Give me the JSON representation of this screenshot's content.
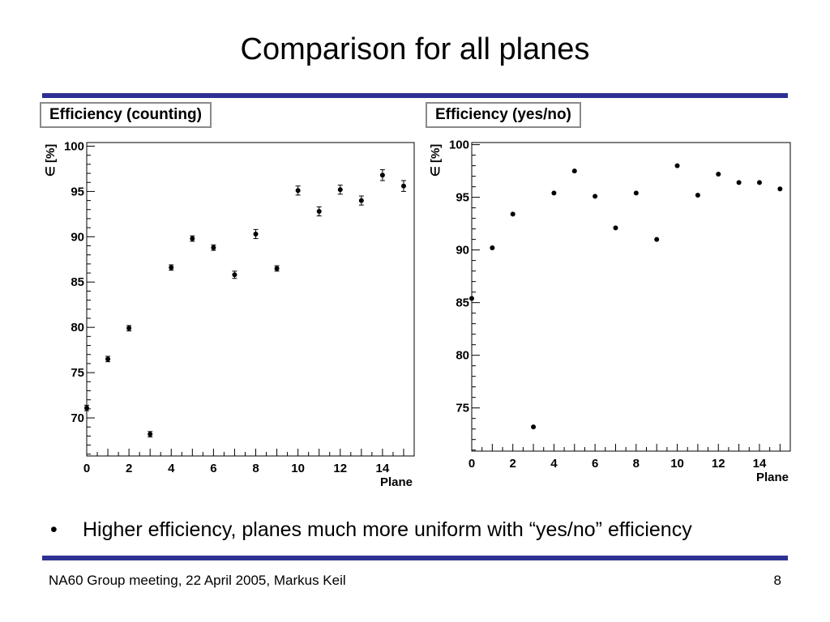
{
  "slide": {
    "title": "Comparison for all planes",
    "bullet_marker": "•",
    "bullet": "Higher efficiency, planes much more uniform with “yes/no” efficiency",
    "footer": "NA60 Group meeting, 22 April 2005, Markus Keil",
    "page_number": "8",
    "accent_color": "#2e3192"
  },
  "chart_data": [
    {
      "type": "scatter",
      "title": "Efficiency (counting)",
      "xlabel": "Plane",
      "ylabel": "∈ [%]",
      "xlim": [
        0,
        15.5
      ],
      "ylim": [
        65.8,
        100.4
      ],
      "xticks": [
        0,
        2,
        4,
        6,
        8,
        10,
        12,
        14
      ],
      "yticks": [
        70,
        75,
        80,
        85,
        90,
        95,
        100
      ],
      "grid": false,
      "error_bars": true,
      "series": [
        {
          "x": [
            0,
            1,
            2,
            3,
            4,
            5,
            6,
            7,
            8,
            9,
            10,
            11,
            12,
            13,
            14,
            15
          ],
          "y": [
            71.1,
            76.5,
            79.9,
            68.2,
            86.6,
            89.8,
            88.8,
            85.8,
            90.3,
            86.5,
            95.1,
            92.8,
            95.2,
            94.0,
            96.8,
            95.6
          ],
          "yerr": [
            0.3,
            0.3,
            0.3,
            0.3,
            0.3,
            0.3,
            0.3,
            0.4,
            0.5,
            0.3,
            0.5,
            0.5,
            0.5,
            0.5,
            0.6,
            0.6
          ]
        }
      ]
    },
    {
      "type": "scatter",
      "title": "Efficiency (yes/no)",
      "xlabel": "Plane",
      "ylabel": "∈ [%]",
      "xlim": [
        0,
        15.5
      ],
      "ylim": [
        70.9,
        100.2
      ],
      "xticks": [
        0,
        2,
        4,
        6,
        8,
        10,
        12,
        14
      ],
      "yticks": [
        75,
        80,
        85,
        90,
        95,
        100
      ],
      "grid": false,
      "error_bars": false,
      "series": [
        {
          "x": [
            0,
            1,
            2,
            3,
            4,
            5,
            6,
            7,
            8,
            9,
            10,
            11,
            12,
            13,
            14,
            15
          ],
          "y": [
            85.4,
            90.2,
            93.4,
            73.2,
            95.4,
            97.5,
            95.1,
            92.1,
            95.4,
            91.0,
            98.0,
            95.2,
            97.2,
            96.4,
            96.4,
            95.8
          ]
        }
      ]
    }
  ]
}
